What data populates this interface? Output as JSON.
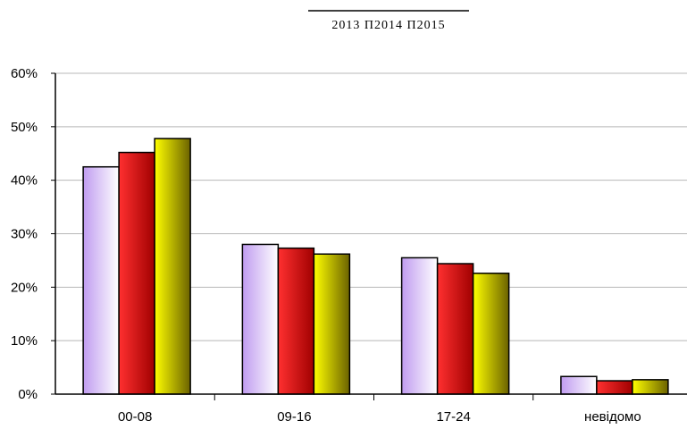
{
  "chart_data": {
    "type": "bar",
    "title": "",
    "xlabel": "",
    "ylabel": "",
    "categories": [
      "00-08",
      "09-16",
      "17-24",
      "невідомо"
    ],
    "series": [
      {
        "name": "2013",
        "values": [
          42.5,
          28.0,
          25.5,
          3.3
        ]
      },
      {
        "name": "2014",
        "values": [
          45.2,
          27.3,
          24.4,
          2.5
        ]
      },
      {
        "name": "2015",
        "values": [
          47.8,
          26.2,
          22.6,
          2.7
        ]
      }
    ],
    "legend_text": "2013 П2014 П2015",
    "ylim": [
      0,
      60
    ],
    "ytick_values": [
      0,
      10,
      20,
      30,
      40,
      50,
      60
    ],
    "ytick_labels": [
      "0%",
      "10%",
      "20%",
      "30%",
      "40%",
      "50%",
      "60%"
    ],
    "grid": true,
    "legend_position": "top-center",
    "colors": {
      "series_2013_light": "#ffffff",
      "series_2013_dark": "#c09cf0",
      "series_2014_light": "#ff2a2a",
      "series_2014_dark": "#a00000",
      "series_2015_light": "#ffff00",
      "series_2015_dark": "#6b6200",
      "grid": "#b8b8b8",
      "axis": "#000000"
    }
  }
}
